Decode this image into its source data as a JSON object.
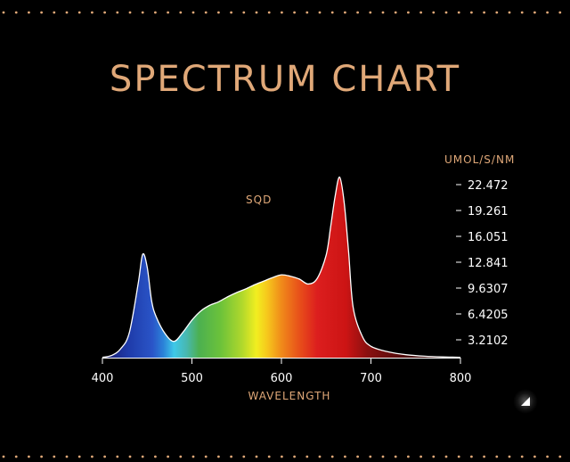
{
  "colors": {
    "background": "#000000",
    "accent": "#e0a878",
    "text": "#ffffff",
    "curve_outline": "#ffffff"
  },
  "chart_data": {
    "type": "area",
    "title": "SPECTRUM CHART",
    "xlabel": "WAVELENGTH",
    "ylabel": "UMOL/S/NM",
    "series_label": "SQD",
    "x_ticks": [
      400,
      500,
      600,
      700,
      800
    ],
    "xlim": [
      400,
      800
    ],
    "y_ticks": [
      3.2102,
      6.4205,
      9.6307,
      12.841,
      16.051,
      19.261,
      22.472
    ],
    "y_tick_labels": [
      "3.2102",
      "6.4205",
      "9.6307",
      "12.841",
      "16.051",
      "19.261",
      "22.472"
    ],
    "ylim": [
      0,
      25.7
    ],
    "fill": "visible-spectrum gradient",
    "series": [
      {
        "name": "SQD",
        "x": [
          400,
          410,
          420,
          430,
          440,
          445,
          450,
          455,
          460,
          470,
          480,
          490,
          500,
          510,
          520,
          530,
          540,
          550,
          560,
          570,
          580,
          590,
          600,
          610,
          620,
          630,
          640,
          650,
          655,
          660,
          665,
          670,
          675,
          680,
          690,
          700,
          720,
          740,
          760,
          780,
          800
        ],
        "y": [
          0.05,
          0.3,
          1.2,
          3.5,
          10.5,
          14.6,
          12.8,
          8.0,
          5.8,
          3.4,
          2.3,
          3.6,
          5.3,
          6.6,
          7.4,
          7.9,
          8.6,
          9.2,
          9.7,
          10.3,
          10.8,
          11.3,
          11.7,
          11.5,
          11.1,
          10.4,
          11.2,
          14.5,
          18.5,
          22.8,
          25.5,
          22.0,
          15.0,
          7.2,
          3.1,
          1.6,
          0.8,
          0.4,
          0.2,
          0.1,
          0.05
        ]
      }
    ]
  }
}
